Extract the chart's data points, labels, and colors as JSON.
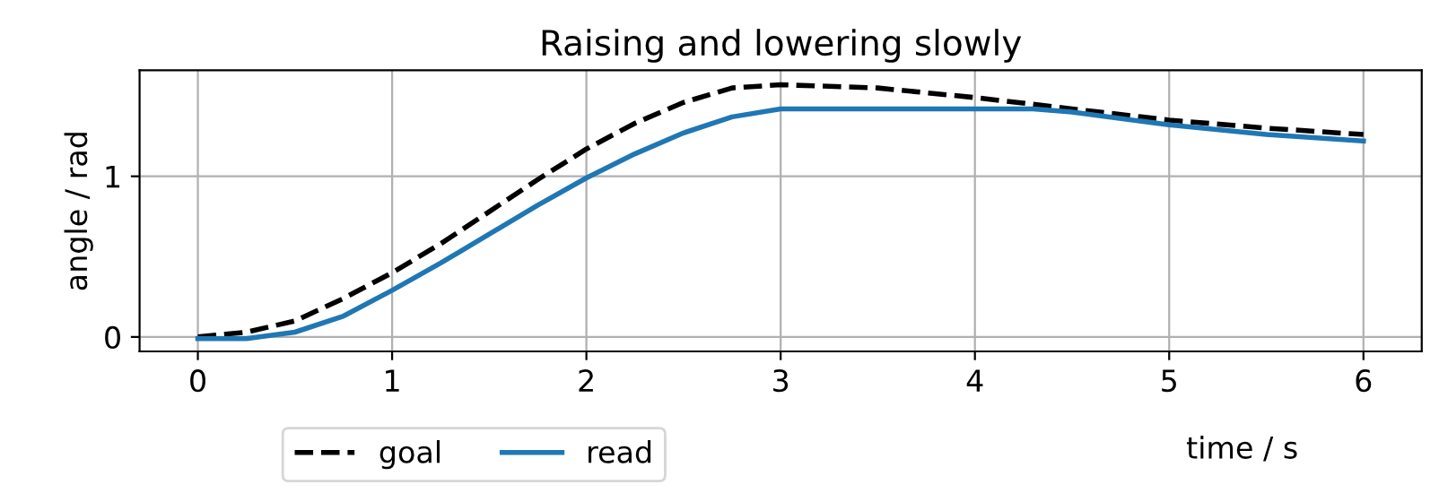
{
  "chart_data": {
    "type": "line",
    "title": "Raising and lowering slowly",
    "xlabel": "time / s",
    "ylabel": "angle / rad",
    "series": [
      {
        "name": "goal",
        "color": "#000000",
        "line_style": "dashed",
        "x": [
          0,
          0.25,
          0.5,
          0.75,
          1,
          1.25,
          1.5,
          1.75,
          2,
          2.25,
          2.5,
          2.75,
          3,
          3.5,
          4,
          4.5,
          5,
          5.5,
          6
        ],
        "values": [
          0,
          0.03,
          0.1,
          0.24,
          0.4,
          0.58,
          0.78,
          0.98,
          1.17,
          1.33,
          1.46,
          1.55,
          1.57,
          1.55,
          1.49,
          1.42,
          1.35,
          1.3,
          1.26
        ]
      },
      {
        "name": "read",
        "color": "#1f77b4",
        "line_style": "solid",
        "x": [
          0,
          0.25,
          0.5,
          0.75,
          1,
          1.25,
          1.5,
          1.75,
          2,
          2.25,
          2.5,
          2.75,
          3,
          3.5,
          4,
          4.3,
          4.5,
          5,
          5.5,
          6
        ],
        "values": [
          -0.01,
          -0.01,
          0.03,
          0.13,
          0.29,
          0.46,
          0.64,
          0.82,
          0.99,
          1.14,
          1.27,
          1.37,
          1.42,
          1.42,
          1.42,
          1.42,
          1.4,
          1.32,
          1.26,
          1.22
        ]
      }
    ],
    "xlim": [
      -0.3,
      6.3
    ],
    "ylim": [
      -0.09,
      1.66
    ],
    "xticks": [
      0,
      1,
      2,
      3,
      4,
      5,
      6
    ],
    "yticks": [
      0,
      1
    ],
    "grid": true,
    "legend": "bottom left",
    "marker": "none"
  }
}
